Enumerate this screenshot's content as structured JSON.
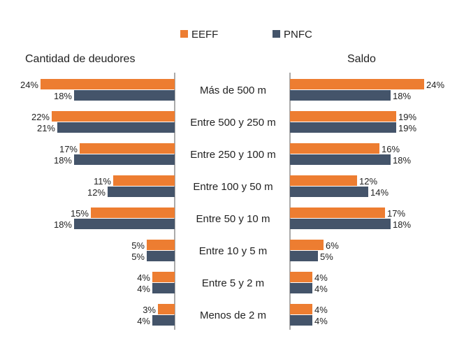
{
  "chart_data": {
    "type": "bar",
    "orientation": "horizontal-butterfly",
    "legend": [
      {
        "name": "EEFF",
        "color": "#ED7D31"
      },
      {
        "name": "PNFC",
        "color": "#44546A"
      }
    ],
    "categories": [
      "Más de 500 m",
      "Entre 500 y 250 m",
      "Entre 250 y 100 m",
      "Entre 100 y 50 m",
      "Entre 50 y 10 m",
      "Entre 10 y 5 m",
      "Entre 5 y 2 m",
      "Menos de 2 m"
    ],
    "panels": {
      "left": {
        "title": "Cantidad de deudores",
        "series": [
          {
            "name": "EEFF",
            "values": [
              24,
              22,
              17,
              11,
              15,
              5,
              4,
              3
            ],
            "labels": [
              "24%",
              "22%",
              "17%",
              "11%",
              "15%",
              "5%",
              "4%",
              "3%"
            ]
          },
          {
            "name": "PNFC",
            "values": [
              18,
              21,
              18,
              12,
              18,
              5,
              4,
              4
            ],
            "labels": [
              "18%",
              "21%",
              "18%",
              "12%",
              "18%",
              "5%",
              "4%",
              "4%"
            ]
          }
        ]
      },
      "right": {
        "title": "Saldo",
        "series": [
          {
            "name": "EEFF",
            "values": [
              24,
              19,
              16,
              12,
              17,
              6,
              4,
              4
            ],
            "labels": [
              "24%",
              "19%",
              "16%",
              "12%",
              "17%",
              "6%",
              "4%",
              "4%"
            ]
          },
          {
            "name": "PNFC",
            "values": [
              18,
              19,
              18,
              14,
              18,
              5,
              4,
              4
            ],
            "labels": [
              "18%",
              "19%",
              "18%",
              "14%",
              "18%",
              "5%",
              "4%",
              "4%"
            ]
          }
        ]
      }
    },
    "unit": "%",
    "xlim": [
      0,
      24
    ]
  }
}
